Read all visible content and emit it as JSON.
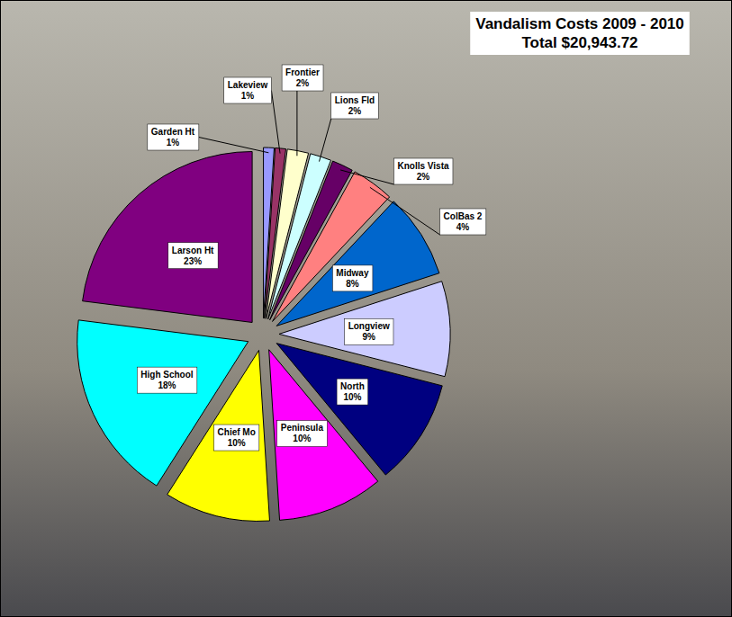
{
  "chart_data": {
    "type": "pie",
    "title": "Vandalism Costs 2009 - 2010",
    "subtitle": "Total $20,943.72",
    "categories": [
      "Garden Ht",
      "Lakeview",
      "Frontier",
      "Lions Fld",
      "Knolls Vista",
      "ColBas 2",
      "Midway",
      "Longview",
      "North",
      "Peninsula",
      "Chief Mo",
      "High School",
      "Larson Ht"
    ],
    "values": [
      1,
      1,
      2,
      2,
      2,
      4,
      8,
      9,
      10,
      10,
      10,
      18,
      23
    ],
    "value_labels": [
      "1%",
      "1%",
      "2%",
      "2%",
      "2%",
      "4%",
      "8%",
      "9%",
      "10%",
      "10%",
      "10%",
      "18%",
      "23%"
    ],
    "colors": [
      "#9999ff",
      "#993366",
      "#ffffcc",
      "#ccffff",
      "#660066",
      "#ff8080",
      "#0066cc",
      "#ccccff",
      "#000080",
      "#ff00ff",
      "#ffff00",
      "#00ffff",
      "#800080"
    ],
    "data_labels": true
  }
}
